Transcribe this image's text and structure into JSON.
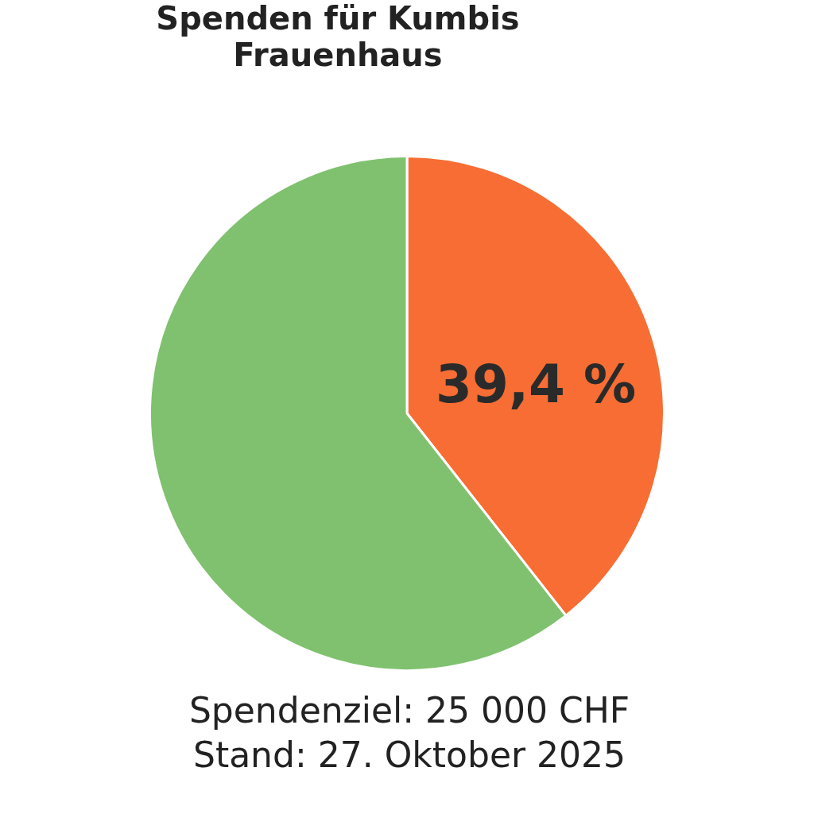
{
  "chart_data": {
    "type": "pie",
    "title": "Spenden für Kumbis Frauenhaus",
    "categories": [
      null,
      null
    ],
    "values": [
      39.4,
      60.6
    ],
    "colors": [
      "#f76d33",
      "#80c16f"
    ],
    "value_labels": [
      "39,4 %",
      null
    ],
    "legend": false,
    "annotations": [
      "Spendenziel: 25 000 CHF",
      "Stand: 27. Oktober 2025"
    ]
  }
}
